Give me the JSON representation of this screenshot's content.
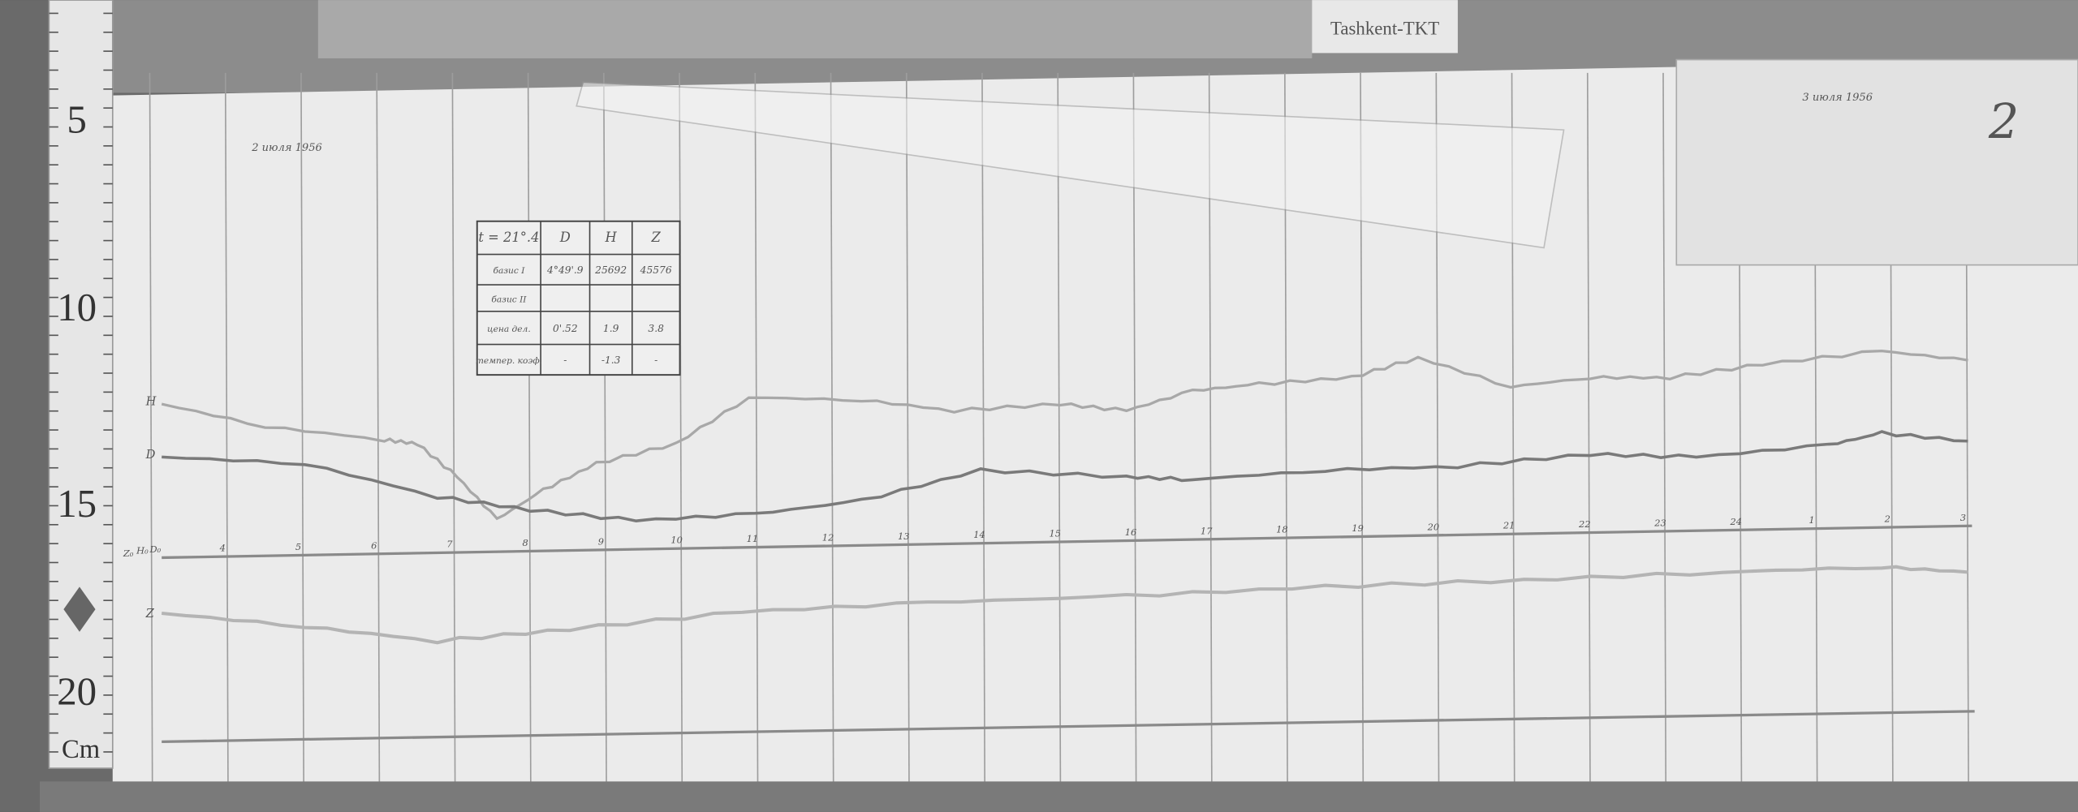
{
  "station_label": "Tashkent-TKT",
  "sheet_number": "2",
  "date_start": "2 июля 1956",
  "date_end": "3 июля 1956",
  "ruler": {
    "marks": [
      "5",
      "10",
      "15",
      "20"
    ],
    "unit": "Cm"
  },
  "trace_labels": {
    "h": "H",
    "d": "D",
    "z": "Z"
  },
  "baseline_labels": [
    "Z₀",
    "H₀",
    "D₀"
  ],
  "hour_labels": [
    "4",
    "5",
    "6",
    "7",
    "8",
    "9",
    "10",
    "11",
    "12",
    "13",
    "14",
    "15",
    "16",
    "17",
    "18",
    "19",
    "20",
    "21",
    "22",
    "23",
    "24",
    "1",
    "2",
    "3"
  ],
  "constants_table": {
    "header": [
      "t = 21°.4",
      "D",
      "H",
      "Z"
    ],
    "rows": [
      [
        "базис I",
        "4°49'.9",
        "25692",
        "45576"
      ],
      [
        "базис II",
        "",
        "",
        ""
      ],
      [
        "цена дел.",
        "0'.52",
        "1.9",
        "3.8"
      ],
      [
        "темпер. коэф.",
        "-",
        "-1.3",
        "-"
      ]
    ]
  }
}
